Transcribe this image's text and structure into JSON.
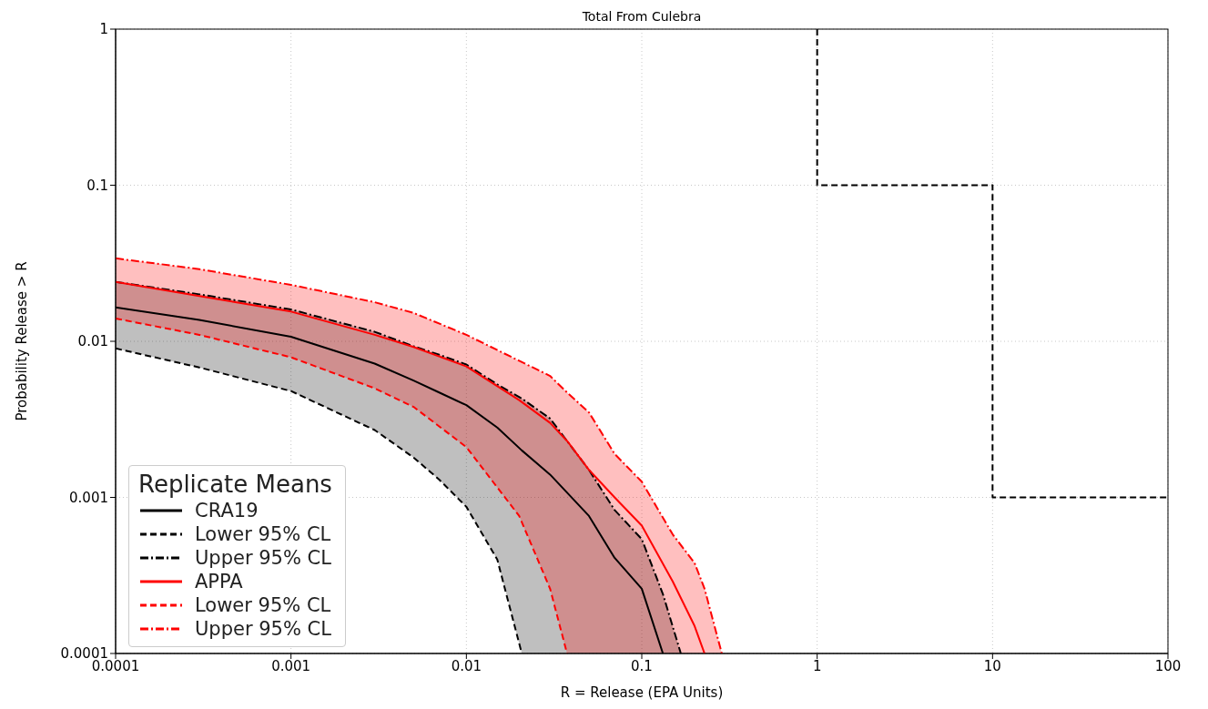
{
  "chart_data": {
    "type": "line",
    "title": "Total From Culebra",
    "xlabel": "R = Release (EPA Units)",
    "ylabel": "Probability Release > R",
    "legend_title": "Replicate Means",
    "log": "xy",
    "grid": true,
    "legend": "bottom left",
    "xlim": [
      0.0001,
      100
    ],
    "ylim": [
      0.0001,
      1
    ],
    "xticks": [
      0.0001,
      0.001,
      0.01,
      0.1,
      1,
      10,
      100
    ],
    "yticks": [
      0.0001,
      0.001,
      0.01,
      0.1,
      1
    ],
    "series": [
      {
        "name": "CRA19",
        "color": "#000000",
        "line_style": "solid",
        "x": [
          0.0001,
          0.0003,
          0.001,
          0.003,
          0.005,
          0.007,
          0.01,
          0.015,
          0.0207,
          0.03,
          0.05,
          0.07,
          0.1,
          0.132,
          0.167
        ],
        "values": [
          0.0165,
          0.0137,
          0.0107,
          0.0072,
          0.0056,
          0.0047,
          0.0039,
          0.0028,
          0.002,
          0.0014,
          0.00076,
          0.00041,
          0.00026,
          0.0001,
          null
        ],
        "lower": [
          0.009,
          0.0068,
          0.0048,
          0.0027,
          0.0018,
          0.0013,
          0.00087,
          0.0004,
          0.0001,
          0.0001,
          0.0001,
          0.0001,
          0.0001,
          0.0001,
          0.0001
        ],
        "upper": [
          0.024,
          0.02,
          0.016,
          0.0115,
          0.0093,
          0.0082,
          0.0071,
          0.0053,
          0.0043,
          0.0032,
          0.0015,
          0.00083,
          0.00054,
          0.00024,
          0.0001
        ]
      },
      {
        "name": "Lower 95% CL",
        "color": "#000000",
        "line_style": "dashed",
        "x": [
          0.0001,
          0.0003,
          0.001,
          0.003,
          0.005,
          0.007,
          0.01,
          0.015,
          0.0207
        ],
        "values": [
          0.009,
          0.0068,
          0.0048,
          0.0027,
          0.0018,
          0.0013,
          0.00087,
          0.0004,
          0.0001
        ]
      },
      {
        "name": "Upper 95% CL",
        "color": "#000000",
        "line_style": "dashdot",
        "x": [
          0.0001,
          0.0003,
          0.001,
          0.003,
          0.005,
          0.007,
          0.01,
          0.015,
          0.0207,
          0.03,
          0.05,
          0.07,
          0.1,
          0.132,
          0.167
        ],
        "values": [
          0.024,
          0.02,
          0.016,
          0.0115,
          0.0093,
          0.0082,
          0.0071,
          0.0053,
          0.0043,
          0.0032,
          0.0015,
          0.00083,
          0.00054,
          0.00024,
          0.0001
        ]
      },
      {
        "name": "APPA",
        "color": "#ff0000",
        "line_style": "solid",
        "x": [
          0.0001,
          0.0003,
          0.001,
          0.003,
          0.005,
          0.01,
          0.02,
          0.03,
          0.0375,
          0.05,
          0.07,
          0.1,
          0.15,
          0.2,
          0.228,
          0.286
        ],
        "values": [
          0.024,
          0.0195,
          0.0155,
          0.011,
          0.0092,
          0.0069,
          0.0042,
          0.003,
          0.0023,
          0.0015,
          0.001,
          0.00066,
          0.00029,
          0.00015,
          0.0001,
          null
        ],
        "lower": [
          0.014,
          0.011,
          0.0079,
          0.005,
          0.0038,
          0.0021,
          0.00076,
          0.00026,
          0.0001,
          0.0001,
          0.0001,
          0.0001,
          0.0001,
          0.0001,
          0.0001,
          0.0001
        ],
        "upper": [
          0.034,
          0.029,
          0.023,
          0.0178,
          0.0152,
          0.011,
          0.0075,
          0.006,
          0.0047,
          0.0035,
          0.0019,
          0.00126,
          0.00058,
          0.00038,
          0.00026,
          0.0001
        ]
      },
      {
        "name": "Lower 95% CL",
        "color": "#ff0000",
        "line_style": "dashed",
        "x": [
          0.0001,
          0.0003,
          0.001,
          0.003,
          0.005,
          0.01,
          0.02,
          0.03,
          0.0375
        ],
        "values": [
          0.014,
          0.011,
          0.0079,
          0.005,
          0.0038,
          0.0021,
          0.00076,
          0.00026,
          0.0001
        ]
      },
      {
        "name": "Upper 95% CL",
        "color": "#ff0000",
        "line_style": "dashdot",
        "x": [
          0.0001,
          0.0003,
          0.001,
          0.003,
          0.005,
          0.01,
          0.02,
          0.03,
          0.0375,
          0.05,
          0.07,
          0.1,
          0.15,
          0.2,
          0.228,
          0.286
        ],
        "values": [
          0.034,
          0.029,
          0.023,
          0.0178,
          0.0152,
          0.011,
          0.0075,
          0.006,
          0.0047,
          0.0035,
          0.0019,
          0.00126,
          0.00058,
          0.00038,
          0.00026,
          0.0001
        ]
      },
      {
        "color": "#000000",
        "line_style": "dashed",
        "x": [
          1,
          1,
          10,
          10,
          100
        ],
        "values": [
          1,
          0.1,
          0.1,
          0.001,
          0.001
        ]
      }
    ]
  }
}
